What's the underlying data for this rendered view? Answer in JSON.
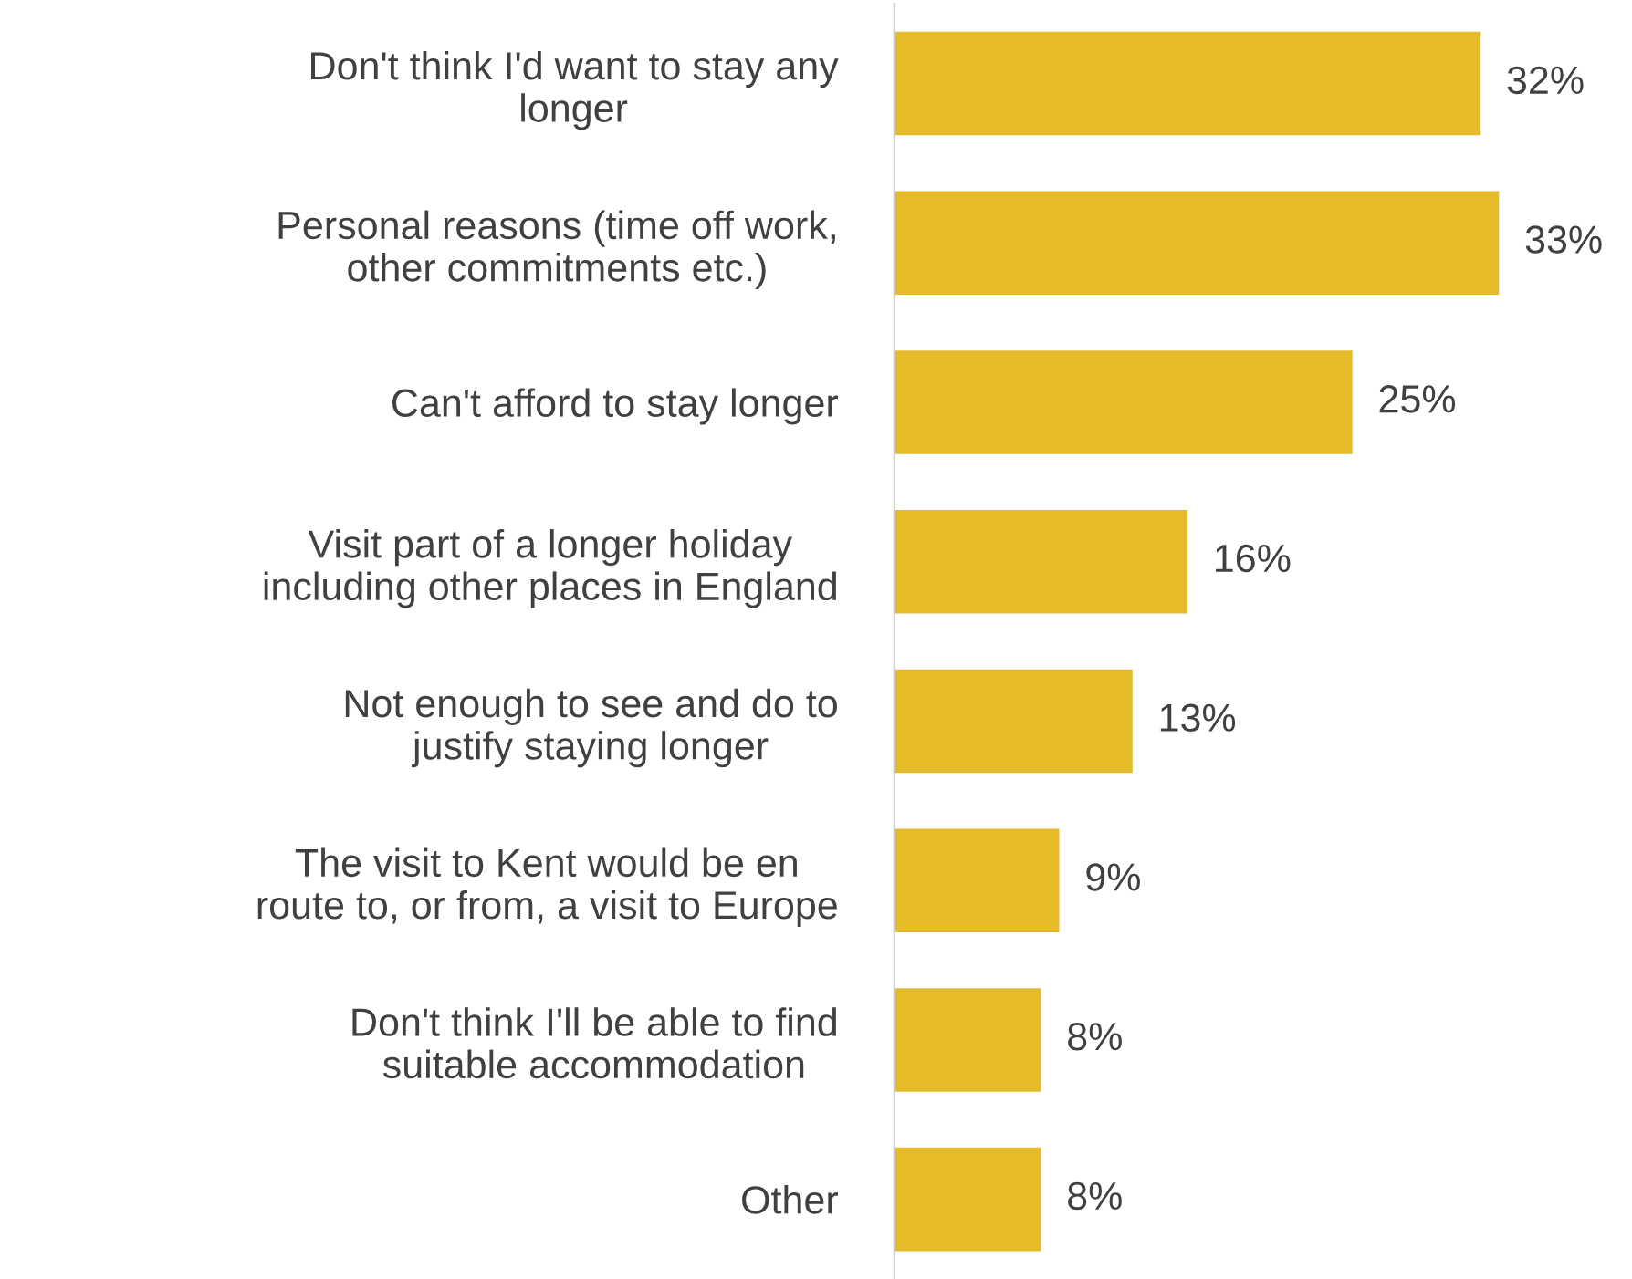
{
  "chart_data": {
    "type": "bar",
    "orientation": "horizontal",
    "categories": [
      "Don't think I'd want to stay any\nlonger",
      "Personal reasons (time off work,\nother commitments etc.)",
      "Can't afford to stay longer",
      "Visit part of a longer holiday\nincluding other places in England",
      "Not enough to see and do to\njustify staying longer",
      "The visit to Kent would be en\nroute to, or from, a visit to Europe",
      "Don't think I'll be able to find\nsuitable accommodation",
      "Other"
    ],
    "values": [
      32,
      33,
      25,
      16,
      13,
      9,
      8,
      8
    ],
    "value_labels": [
      "32%",
      "33%",
      "25%",
      "16%",
      "13%",
      "9%",
      "8%",
      "8%"
    ],
    "color": "#e6bb2a",
    "tick_labels": "y",
    "grid": false,
    "legend": false
  }
}
